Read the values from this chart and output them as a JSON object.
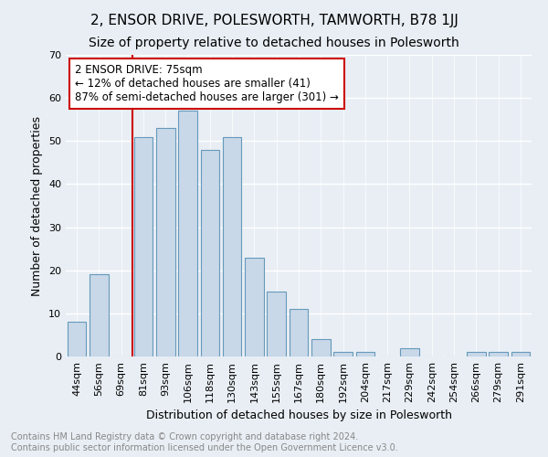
{
  "title": "2, ENSOR DRIVE, POLESWORTH, TAMWORTH, B78 1JJ",
  "subtitle": "Size of property relative to detached houses in Polesworth",
  "xlabel": "Distribution of detached houses by size in Polesworth",
  "ylabel": "Number of detached properties",
  "categories": [
    "44sqm",
    "56sqm",
    "69sqm",
    "81sqm",
    "93sqm",
    "106sqm",
    "118sqm",
    "130sqm",
    "143sqm",
    "155sqm",
    "167sqm",
    "180sqm",
    "192sqm",
    "204sqm",
    "217sqm",
    "229sqm",
    "242sqm",
    "254sqm",
    "266sqm",
    "279sqm",
    "291sqm"
  ],
  "values": [
    8,
    19,
    0,
    51,
    53,
    57,
    48,
    51,
    23,
    15,
    11,
    4,
    1,
    1,
    0,
    2,
    0,
    0,
    1,
    1,
    1
  ],
  "bar_color": "#c8d8e8",
  "bar_edge_color": "#6699bb",
  "property_line_color": "#cc0000",
  "annotation_text": "2 ENSOR DRIVE: 75sqm\n← 12% of detached houses are smaller (41)\n87% of semi-detached houses are larger (301) →",
  "annotation_box_color": "#ffffff",
  "annotation_box_edge_color": "#cc0000",
  "ylim": [
    0,
    70
  ],
  "yticks": [
    0,
    10,
    20,
    30,
    40,
    50,
    60,
    70
  ],
  "background_color": "#e8eef4",
  "plot_background_color": "#e8eef4",
  "grid_color": "#ffffff",
  "footer_text": "Contains HM Land Registry data © Crown copyright and database right 2024.\nContains public sector information licensed under the Open Government Licence v3.0.",
  "title_fontsize": 11,
  "subtitle_fontsize": 10,
  "xlabel_fontsize": 9,
  "ylabel_fontsize": 9,
  "tick_fontsize": 8,
  "annotation_fontsize": 8.5,
  "footer_fontsize": 7
}
